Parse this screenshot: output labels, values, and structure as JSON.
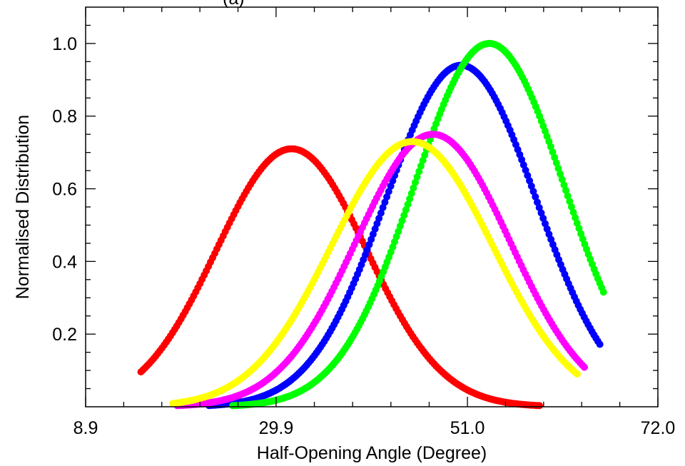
{
  "chart_data": {
    "type": "scatter",
    "title": "(a)",
    "xlabel": "Half-Opening Angle (Degree)",
    "ylabel": "Normalised Distribution",
    "xlim": [
      8.9,
      72.0
    ],
    "ylim": [
      0.0,
      1.1
    ],
    "x_ticks": [
      "8.9",
      "29.9",
      "51.0",
      "72.0"
    ],
    "x_tick_values": [
      8.9,
      29.9,
      51.0,
      72.0
    ],
    "y_ticks": [
      "0.2",
      "0.4",
      "0.6",
      "0.8",
      "1.0"
    ],
    "y_tick_values": [
      0.2,
      0.4,
      0.6,
      0.8,
      1.0
    ],
    "grid": false,
    "series": [
      {
        "color": "#ff0000",
        "mu": 31.6,
        "sigma": 8.3,
        "peak": 0.71,
        "x_range": [
          15.0,
          61.5
        ]
      },
      {
        "color": "#0000ff",
        "mu": 50.3,
        "sigma": 8.3,
        "peak": 0.94,
        "x_range": [
          22.5,
          65.6
        ]
      },
      {
        "color": "#00ff00",
        "mu": 53.4,
        "sigma": 8.3,
        "peak": 1.0,
        "x_range": [
          24.5,
          66.0
        ]
      },
      {
        "color": "#ff00ff",
        "mu": 47.2,
        "sigma": 8.5,
        "peak": 0.75,
        "x_range": [
          19.0,
          63.9
        ]
      },
      {
        "color": "#ffff00",
        "mu": 44.9,
        "sigma": 8.9,
        "peak": 0.73,
        "x_range": [
          18.5,
          63.1
        ]
      }
    ]
  }
}
